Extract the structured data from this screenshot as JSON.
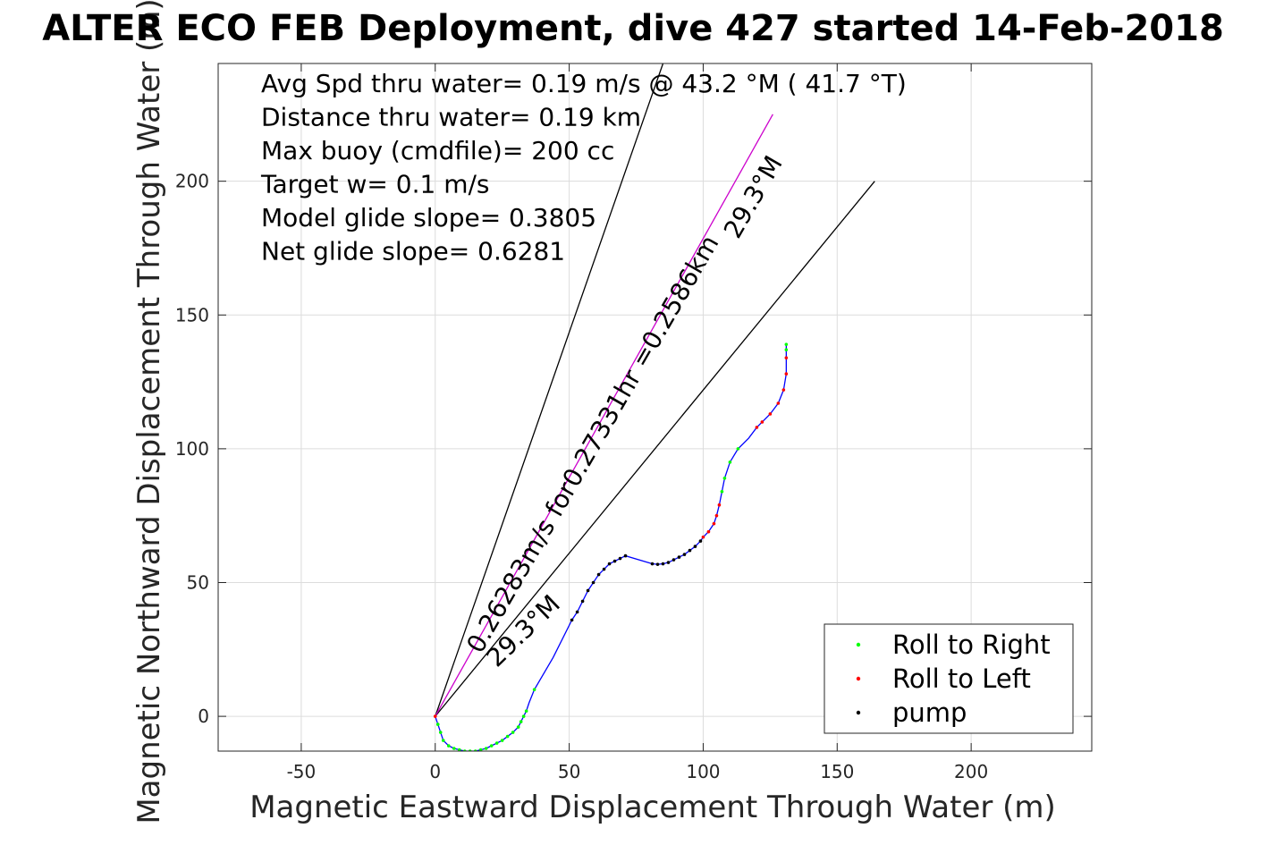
{
  "chart_data": {
    "type": "scatter",
    "title": "ALTER ECO FEB Deployment, dive 427 started 14-Feb-2018",
    "xlabel": "Magnetic Eastward Displacement Through Water (m)",
    "ylabel": "Magnetic Northward Displacement Through Water (m)",
    "xlim": [
      -81,
      245
    ],
    "ylim": [
      -13,
      244
    ],
    "xticks": [
      -50,
      0,
      50,
      100,
      150,
      200
    ],
    "yticks": [
      0,
      50,
      100,
      150,
      200
    ],
    "xtick_labels": [
      "-50",
      "0",
      "50",
      "100",
      "150",
      "200"
    ],
    "ytick_labels": [
      "0",
      "50",
      "100",
      "150",
      "200"
    ],
    "grid": true,
    "legend_placement": "bottom-right",
    "text_box": [
      "Avg Spd thru water=  0.19 m/s @  43.2 °M ( 41.7 °T)",
      "Distance thru water=  0.19 km",
      "Max buoy (cmdfile)= 200 cc",
      "Target w= 0.1 m/s",
      "Model glide slope= 0.3805",
      "Net glide slope= 0.6281"
    ],
    "rotated_labels": [
      {
        "text": "0.26283m/s for0.27331hr =0.2586km",
        "x": 17,
        "y": 23,
        "angle": 60
      },
      {
        "text": "29.3°M",
        "x": 113,
        "y": 178,
        "angle": 60
      },
      {
        "text": "29.3°M",
        "x": 23,
        "y": 18,
        "angle": 44
      }
    ],
    "reference_lines": [
      {
        "name": "direction-line-steep",
        "color": "#000000",
        "from": [
          0,
          0
        ],
        "to": [
          85,
          244
        ]
      },
      {
        "name": "direction-line-shallow",
        "color": "#000000",
        "from": [
          0,
          0
        ],
        "to": [
          164,
          200
        ]
      },
      {
        "name": "target-line",
        "color": "#cc00cc",
        "from": [
          0,
          0
        ],
        "to": [
          126,
          225
        ]
      }
    ],
    "track_color": "#0000ff",
    "track": [
      [
        0,
        0
      ],
      [
        1,
        -3
      ],
      [
        2,
        -6
      ],
      [
        3,
        -9
      ],
      [
        5,
        -11
      ],
      [
        7,
        -12
      ],
      [
        9,
        -12.5
      ],
      [
        11,
        -13
      ],
      [
        13,
        -13
      ],
      [
        15,
        -13
      ],
      [
        17,
        -12.5
      ],
      [
        19,
        -12
      ],
      [
        21,
        -11
      ],
      [
        23,
        -10
      ],
      [
        25,
        -9
      ],
      [
        27,
        -7.5
      ],
      [
        29,
        -6
      ],
      [
        31,
        -4
      ],
      [
        32,
        -2
      ],
      [
        33,
        0
      ],
      [
        34,
        2
      ],
      [
        35,
        5
      ],
      [
        37,
        10
      ],
      [
        44,
        22
      ],
      [
        51,
        36
      ],
      [
        53,
        39
      ],
      [
        55,
        43
      ],
      [
        57,
        47
      ],
      [
        59,
        50
      ],
      [
        61,
        53
      ],
      [
        63,
        55
      ],
      [
        65,
        57
      ],
      [
        67,
        58
      ],
      [
        69,
        59
      ],
      [
        71,
        60
      ],
      [
        81,
        57
      ],
      [
        83,
        56.8
      ],
      [
        85,
        57
      ],
      [
        87,
        57.5
      ],
      [
        89,
        58.5
      ],
      [
        91,
        59.5
      ],
      [
        93,
        60.5
      ],
      [
        95,
        62
      ],
      [
        97,
        63.5
      ],
      [
        99,
        65.5
      ],
      [
        100,
        67
      ],
      [
        102,
        69
      ],
      [
        104,
        72
      ],
      [
        105,
        75
      ],
      [
        106,
        79
      ],
      [
        107,
        84
      ],
      [
        108,
        89
      ],
      [
        110,
        95
      ],
      [
        113,
        100
      ],
      [
        117,
        104
      ],
      [
        120,
        108
      ],
      [
        122,
        110
      ],
      [
        125,
        113
      ],
      [
        128,
        117
      ],
      [
        130,
        122
      ],
      [
        131,
        128
      ],
      [
        131,
        134
      ],
      [
        131,
        137
      ],
      [
        131,
        139
      ]
    ],
    "series": [
      {
        "name": "Roll to Right",
        "color": "#00ff00",
        "points": [
          [
            1,
            -3
          ],
          [
            2,
            -6
          ],
          [
            3,
            -9
          ],
          [
            5,
            -11
          ],
          [
            7,
            -12
          ],
          [
            9,
            -12.5
          ],
          [
            11,
            -13
          ],
          [
            13,
            -13
          ],
          [
            15,
            -13
          ],
          [
            17,
            -12.5
          ],
          [
            19,
            -12
          ],
          [
            21,
            -11
          ],
          [
            23,
            -10
          ],
          [
            25,
            -9
          ],
          [
            27,
            -7.5
          ],
          [
            29,
            -6
          ],
          [
            31,
            -4
          ],
          [
            32,
            -2
          ],
          [
            33,
            0
          ],
          [
            34,
            2
          ],
          [
            37,
            10
          ],
          [
            107,
            84
          ],
          [
            108,
            89
          ],
          [
            110,
            95
          ],
          [
            113,
            100
          ],
          [
            131,
            137
          ],
          [
            131,
            139
          ]
        ]
      },
      {
        "name": "Roll to Left",
        "color": "#ff0000",
        "points": [
          [
            0,
            0
          ],
          [
            100,
            67
          ],
          [
            102,
            69
          ],
          [
            104,
            72
          ],
          [
            105,
            75
          ],
          [
            106,
            79
          ],
          [
            120,
            108
          ],
          [
            122,
            110
          ],
          [
            125,
            113
          ],
          [
            128,
            117
          ],
          [
            130,
            122
          ],
          [
            131,
            128
          ],
          [
            131,
            134
          ]
        ]
      },
      {
        "name": "pump",
        "color": "#000000",
        "points": [
          [
            51,
            36
          ],
          [
            53,
            39
          ],
          [
            55,
            43
          ],
          [
            57,
            47
          ],
          [
            59,
            50
          ],
          [
            61,
            53
          ],
          [
            63,
            55
          ],
          [
            65,
            57
          ],
          [
            67,
            58
          ],
          [
            69,
            59
          ],
          [
            71,
            60
          ],
          [
            81,
            57
          ],
          [
            83,
            56.8
          ],
          [
            85,
            57
          ],
          [
            87,
            57.5
          ],
          [
            89,
            58.5
          ],
          [
            91,
            59.5
          ],
          [
            93,
            60.5
          ],
          [
            95,
            62
          ],
          [
            97,
            63.5
          ],
          [
            99,
            65.5
          ]
        ]
      }
    ]
  }
}
